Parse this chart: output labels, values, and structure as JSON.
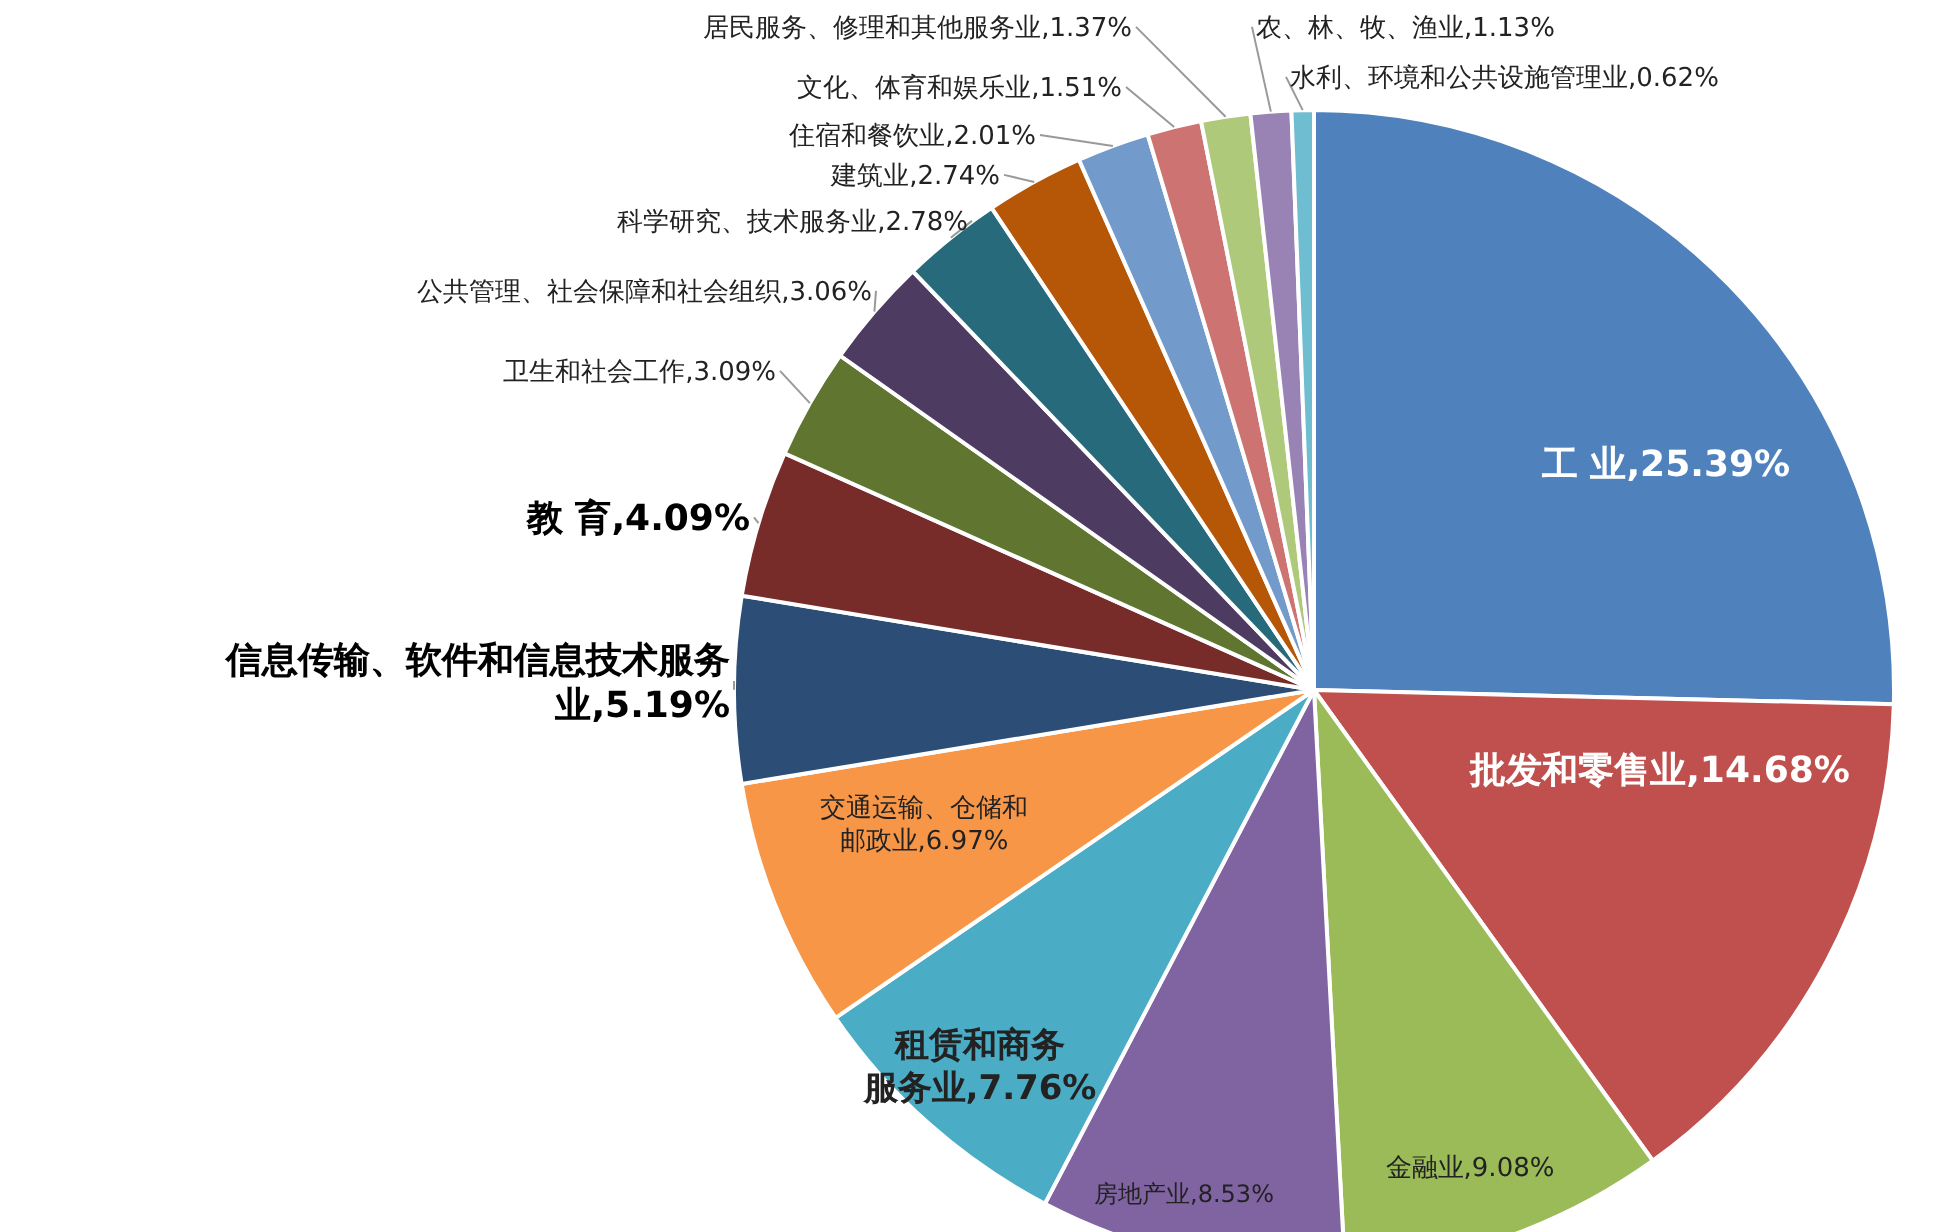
{
  "chart_data": {
    "type": "pie",
    "categories": [
      "工 业",
      "批发和零售业",
      "金融业",
      "房地产业",
      "租赁和商务服务业",
      "交通运输、仓储和邮政业",
      "信息传输、软件和信息技术服务业",
      "教 育",
      "卫生和社会工作",
      "公共管理、社会保障和社会组织",
      "科学研究、技术服务业",
      "建筑业",
      "住宿和餐饮业",
      "文化、体育和娱乐业",
      "居民服务、修理和其他服务业",
      "农、林、牧、渔业",
      "水利、环境和公共设施管理业"
    ],
    "values": [
      25.39,
      14.68,
      9.08,
      8.53,
      7.76,
      6.97,
      5.19,
      4.09,
      3.09,
      3.06,
      2.78,
      2.74,
      2.01,
      1.51,
      1.37,
      1.13,
      0.62
    ],
    "value_labels": [
      "25.39%",
      "14.68%",
      "9.08%",
      "8.53%",
      "7.76%",
      "6.97%",
      "5.19%",
      "4.09%",
      "3.09%",
      "3.06%",
      "2.78%",
      "2.74%",
      "2.01%",
      "1.51%",
      "1.37%",
      "1.13%",
      "0.62%"
    ],
    "colors": [
      "#4f81bd",
      "#c0504d",
      "#9bbb59",
      "#8064a2",
      "#4bacc6",
      "#f79646",
      "#2c4d75",
      "#772c2a",
      "#5f7530",
      "#4d3b62",
      "#276a7c",
      "#b65708",
      "#729aca",
      "#cd7371",
      "#afc97a",
      "#9983b5",
      "#6fbdd1"
    ]
  }
}
